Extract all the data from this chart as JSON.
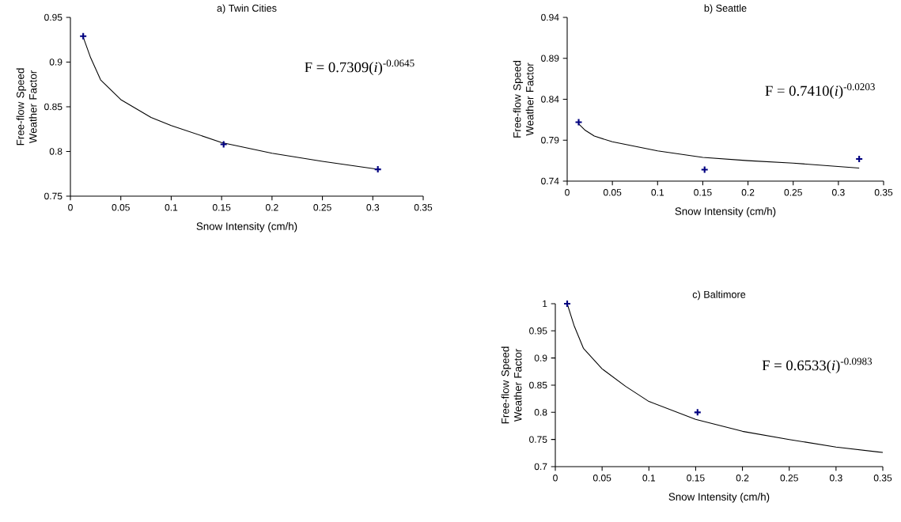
{
  "chart_data": [
    {
      "type": "scatter",
      "title": "a) Twin Cities",
      "xlabel": "Snow Intensity (cm/h)",
      "ylabel": "Free-flow Speed Weather Factor",
      "marker": "cross",
      "xlim": [
        0,
        0.35
      ],
      "ylim": [
        0.75,
        0.95
      ],
      "xticks": [
        0,
        0.05,
        0.1,
        0.15,
        0.2,
        0.25,
        0.3,
        0.35
      ],
      "yticks": [
        0.75,
        0.8,
        0.85,
        0.9,
        0.95
      ],
      "annotations": [
        "F = 0.7309(*i*)$^{-0.0645}$"
      ],
      "series": [
        {
          "color": "#000080",
          "x": [
            0.0127,
            0.152,
            0.305
          ],
          "values": [
            0.929,
            0.808,
            0.78
          ]
        },
        {
          "type": "line",
          "color": "#000000",
          "marker": "none",
          "line_style": "solid",
          "x": [
            0.0127,
            0.02,
            0.03,
            0.05,
            0.08,
            0.1,
            0.15,
            0.2,
            0.25,
            0.305
          ],
          "values": [
            0.928,
            0.905,
            0.88,
            0.858,
            0.838,
            0.829,
            0.81,
            0.798,
            0.789,
            0.78
          ]
        }
      ]
    },
    {
      "type": "scatter",
      "title": "b) Seattle",
      "xlabel": "Snow Intensity (cm/h)",
      "ylabel": "Free-flow Speed Weather Factor",
      "marker": "cross",
      "xlim": [
        0,
        0.35
      ],
      "ylim": [
        0.74,
        0.94
      ],
      "xticks": [
        0,
        0.05,
        0.1,
        0.15,
        0.2,
        0.25,
        0.3,
        0.35
      ],
      "yticks": [
        0.74,
        0.79,
        0.84,
        0.89,
        0.94
      ],
      "annotations": [
        "F = 0.7410(*i*)$^{-0.0203}$"
      ],
      "series": [
        {
          "color": "#000080",
          "x": [
            0.0127,
            0.152,
            0.323
          ],
          "values": [
            0.812,
            0.754,
            0.767
          ]
        },
        {
          "type": "line",
          "color": "#000000",
          "marker": "none",
          "line_style": "solid",
          "x": [
            0.0127,
            0.02,
            0.03,
            0.05,
            0.1,
            0.15,
            0.2,
            0.25,
            0.323
          ],
          "values": [
            0.81,
            0.802,
            0.795,
            0.788,
            0.777,
            0.769,
            0.765,
            0.762,
            0.756
          ]
        }
      ]
    },
    {
      "type": "scatter",
      "title": "c) Baltimore",
      "xlabel": "Snow Intensity (cm/h)",
      "ylabel": "Free-flow Speed Weather Factor",
      "marker": "cross",
      "xlim": [
        0,
        0.35
      ],
      "ylim": [
        0.7,
        1
      ],
      "xticks": [
        0,
        0.05,
        0.1,
        0.15,
        0.2,
        0.25,
        0.3,
        0.35
      ],
      "yticks": [
        0.7,
        0.75,
        0.8,
        0.85,
        0.9,
        0.95,
        1
      ],
      "annotations": [
        "F = 0.6533(*i*)$^{-0.0983}$"
      ],
      "series": [
        {
          "color": "#000080",
          "x": [
            0.0127,
            0.152
          ],
          "values": [
            1.0,
            0.8
          ]
        },
        {
          "type": "line",
          "color": "#000000",
          "marker": "none",
          "line_style": "solid",
          "x": [
            0.0127,
            0.02,
            0.03,
            0.05,
            0.075,
            0.1,
            0.15,
            0.2,
            0.25,
            0.3,
            0.35
          ],
          "values": [
            1.0,
            0.96,
            0.918,
            0.88,
            0.848,
            0.82,
            0.787,
            0.765,
            0.75,
            0.736,
            0.726
          ]
        }
      ]
    }
  ]
}
